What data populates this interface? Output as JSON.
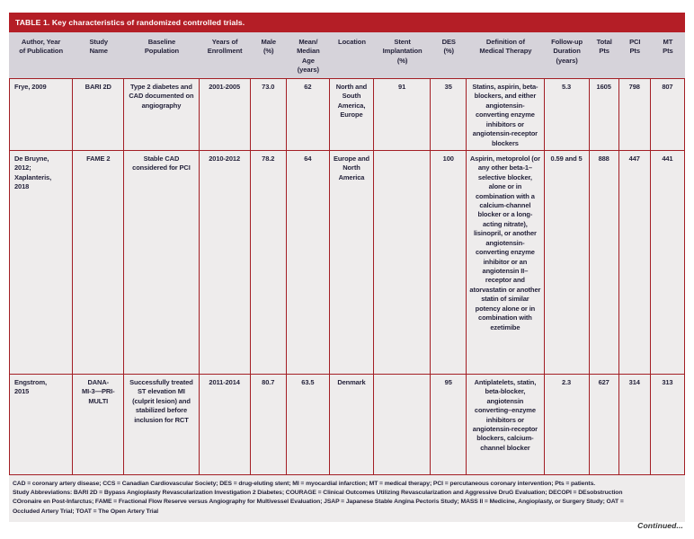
{
  "table": {
    "title": "TABLE 1. Key characteristics of randomized controlled trials.",
    "columns": [
      "Author, Year\nof Publication",
      "Study\nName",
      "Baseline\nPopulation",
      "Years of\nEnrollment",
      "Male\n(%)",
      "Mean/\nMedian\nAge\n(years)",
      "Location",
      "Stent\nImplantation\n(%)",
      "DES\n(%)",
      "Definition of\nMedical Therapy",
      "Follow-up\nDuration\n(years)",
      "Total\nPts",
      "PCI\nPts",
      "MT\nPts"
    ],
    "rows": [
      [
        "Frye, 2009",
        "BARI 2D",
        "Type 2 diabetes and CAD documented on angiography",
        "2001-2005",
        "73.0",
        "62",
        "North and South America, Europe",
        "91",
        "35",
        "Statins, aspirin, beta-blockers, and either angiotensin-converting enzyme inhibitors or angiotensin-receptor blockers",
        "5.3",
        "1605",
        "798",
        "807"
      ],
      [
        "De Bruyne,\n2012;\nXaplanteris,\n2018",
        "FAME 2",
        "Stable CAD considered for PCI",
        "2010-2012",
        "78.2",
        "64",
        "Europe and North America",
        "",
        "100",
        "Aspirin, metoprolol (or any other beta-1–selective blocker, alone or in combination with a calcium-channel blocker or a long-acting nitrate), lisinopril, or another angiotensin-converting enzyme inhibitor or an angiotensin II–receptor and atorvastatin or another statin of similar potency alone or in combination with ezetimibe",
        "0.59 and 5",
        "888",
        "447",
        "441"
      ],
      [
        "Engstrom,\n2015",
        "DANA-\nMI-3—PRI-\nMULTI",
        "Successfully treated ST elevation MI (culprit lesion) and stabilized before inclusion for RCT",
        "2011-2014",
        "80.7",
        "63.5",
        "Denmark",
        "",
        "95",
        "Antiplatelets, statin, beta-blocker, angiotensin converting–enzyme inhibitors or angiotensin-receptor blockers, calcium-channel blocker",
        "2.3",
        "627",
        "314",
        "313"
      ]
    ],
    "footnotes": [
      "CAD = coronary artery disease; CCS = Canadian Cardiovascular Society; DES = drug-eluting stent; MI = myocardial infarction; MT = medical therapy; PCI = percutaneous coronary intervention; Pts = patients.",
      "Study Abbreviations: BARI 2D = Bypass Angioplasty Revascularization Investigation 2 Diabetes; COURAGE = Clinical Outcomes Utilizing Revascularization and Aggressive DruG Evaluation; DECOPI = DEsobstruction",
      "COronaire en Post-Infarctus; FAME = Fractional Flow Reserve versus Angiography for Multivessel Evaluation; JSAP = Japanese Stable Angina Pectoris Study; MASS II = Medicine, Angioplasty, or Surgery Study; OAT =",
      "Occluded Artery Trial; TOAT = The Open Artery Trial"
    ],
    "continued": "Continued..."
  },
  "colors": {
    "title_bar": "#b41e26",
    "border": "#a31e24",
    "header_bg": "#d6d3da",
    "body_bg": "#eeecec",
    "text": "#26243c"
  }
}
